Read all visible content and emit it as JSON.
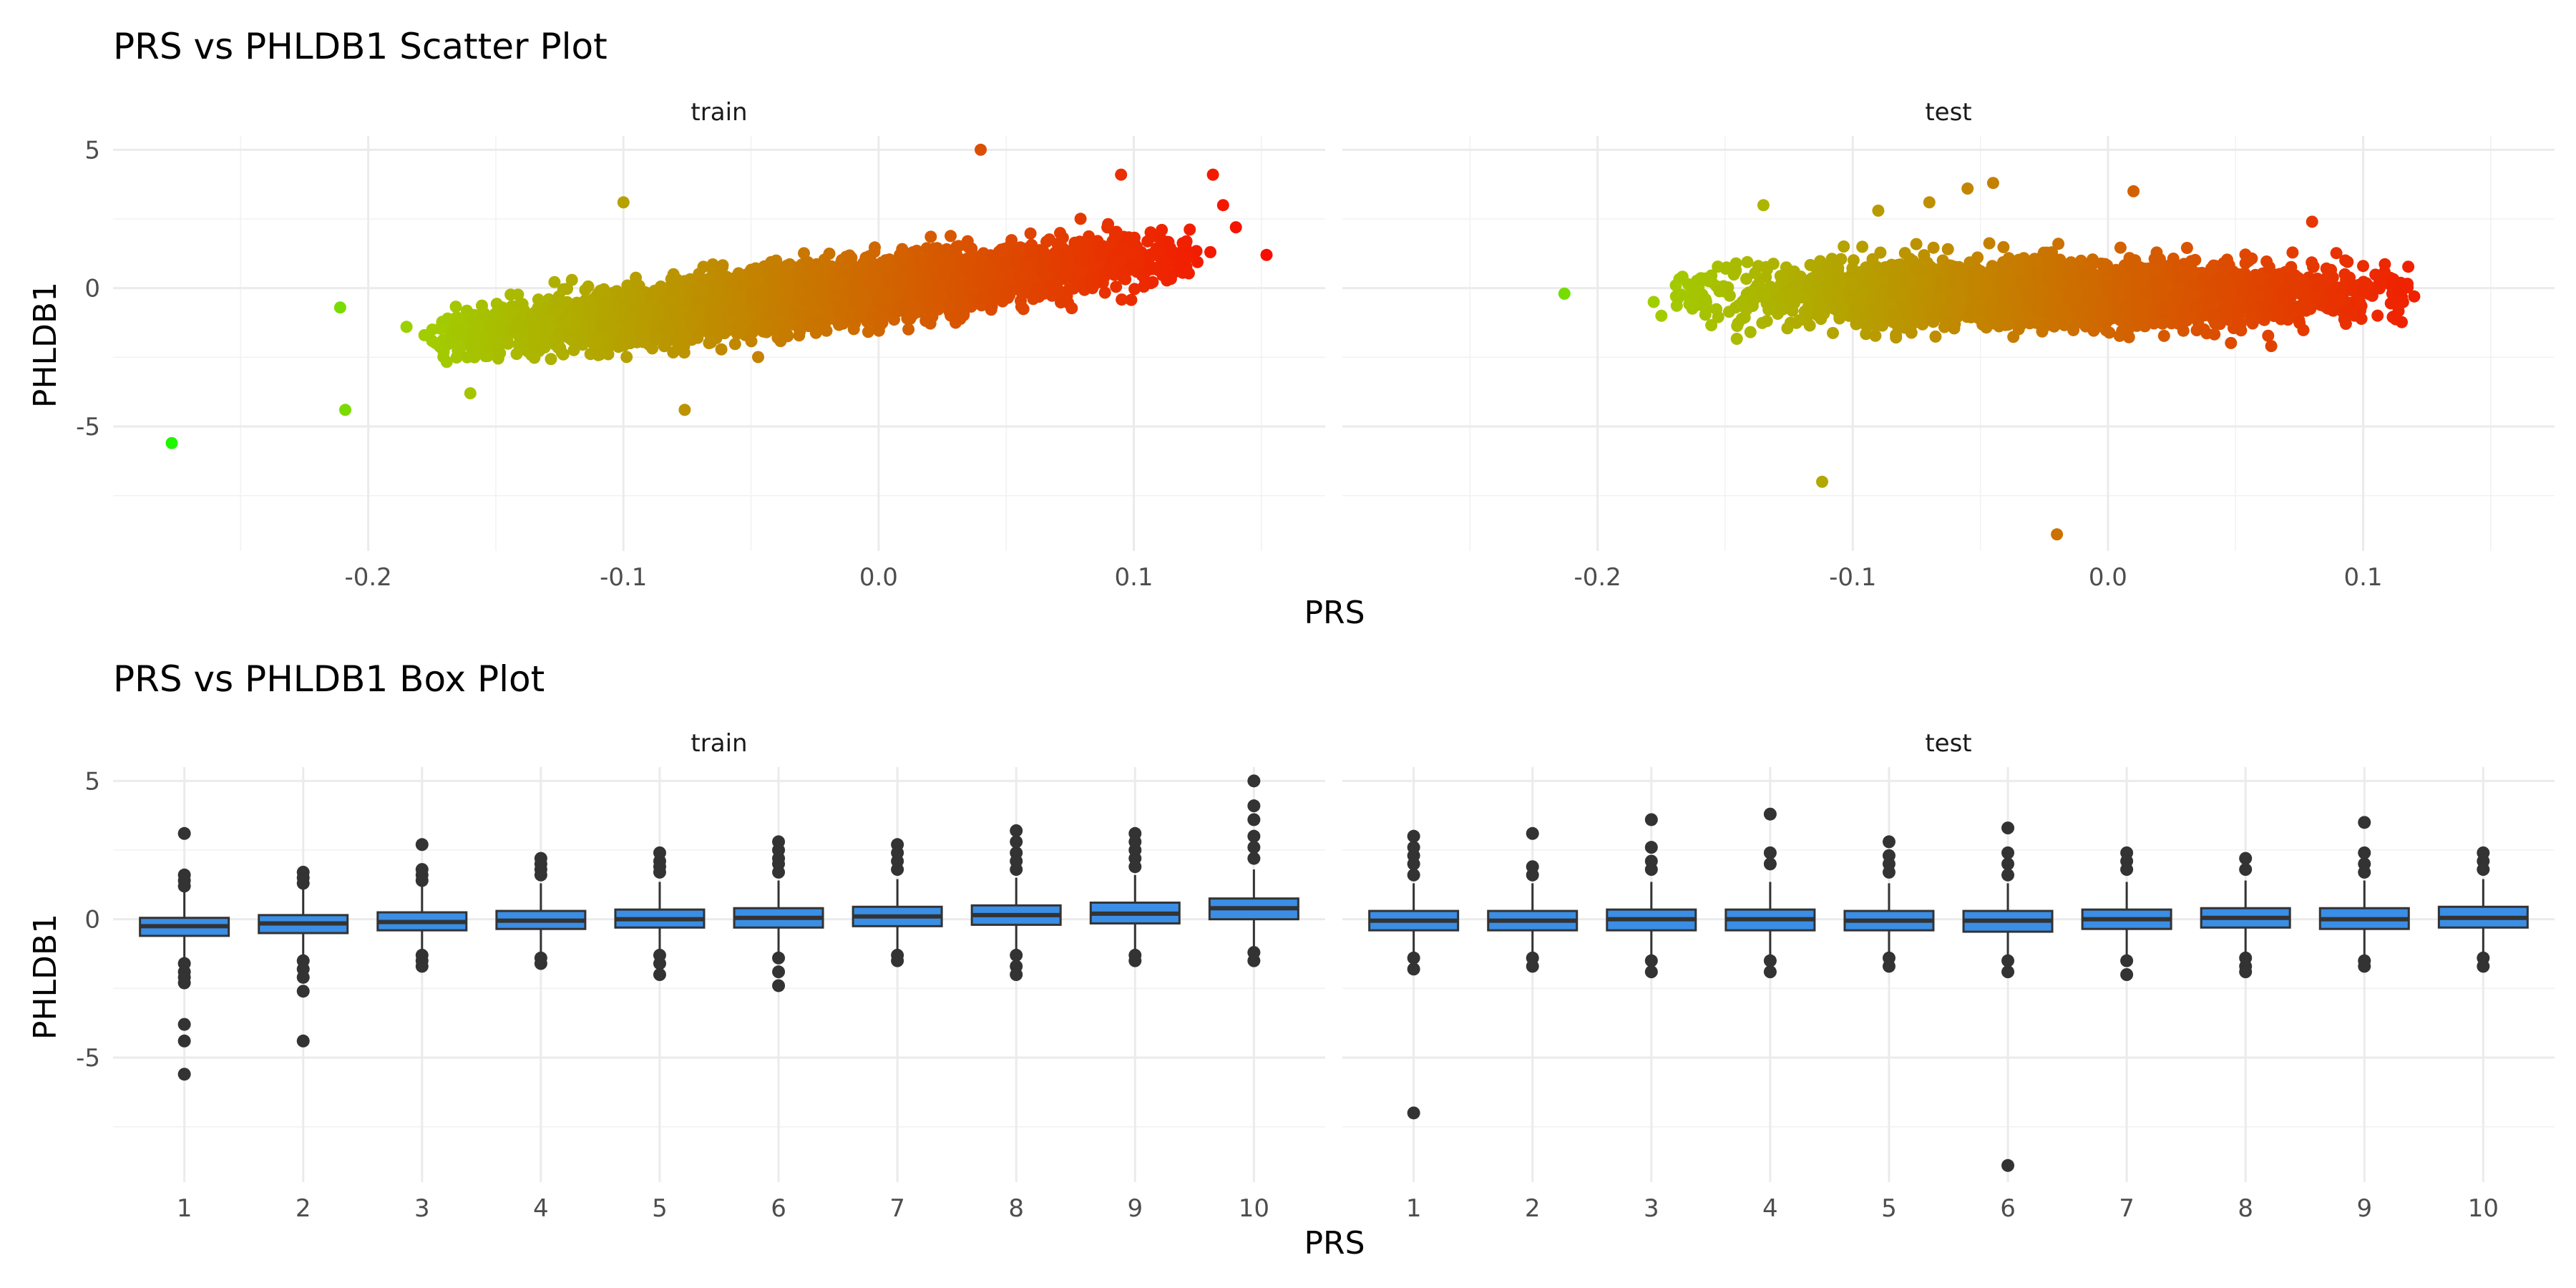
{
  "chart_data": [
    {
      "type": "scatter",
      "title": "PRS vs PHLDB1 Scatter Plot",
      "xlabel": "PRS",
      "ylabel": "PHLDB1",
      "facets": [
        "train",
        "test"
      ],
      "xlim": [
        -0.3,
        0.175
      ],
      "ylim": [
        -9.5,
        5.5
      ],
      "x_ticks": [
        -0.2,
        -0.1,
        0.0,
        0.1
      ],
      "x_tick_labels": [
        "-0.2",
        "-0.1",
        "0.0",
        "0.1"
      ],
      "y_ticks": [
        -5,
        0,
        5
      ],
      "y_tick_labels": [
        "-5",
        "0",
        "5"
      ],
      "color_low": "#00ff00",
      "color_mid": "#a0d000",
      "color_high": "#ff0000",
      "grid": true,
      "legend": "none",
      "series": [
        {
          "facet": "train",
          "cloud": {
            "x_min": -0.175,
            "x_max": 0.125,
            "center": [
              0.0,
              0.0
            ],
            "slope": 10,
            "spread": 0.5,
            "n": 5000
          },
          "points": [
            {
              "x": -0.277,
              "y": -5.6
            },
            {
              "x": -0.211,
              "y": -0.7
            },
            {
              "x": -0.209,
              "y": -4.4
            },
            {
              "x": -0.185,
              "y": -1.4
            },
            {
              "x": -0.178,
              "y": -1.7
            },
            {
              "x": -0.16,
              "y": -3.8
            },
            {
              "x": -0.1,
              "y": 3.1
            },
            {
              "x": -0.076,
              "y": -4.4
            },
            {
              "x": 0.04,
              "y": 5.0
            },
            {
              "x": 0.095,
              "y": 4.1
            },
            {
              "x": 0.131,
              "y": 4.1
            },
            {
              "x": 0.135,
              "y": 3.0
            },
            {
              "x": 0.14,
              "y": 2.2
            },
            {
              "x": 0.152,
              "y": 1.2
            },
            {
              "x": 0.13,
              "y": 1.3
            }
          ]
        },
        {
          "facet": "test",
          "cloud": {
            "x_min": -0.17,
            "x_max": 0.12,
            "center": [
              -0.03,
              -0.2
            ],
            "slope": 0,
            "spread": 0.55,
            "n": 3000
          },
          "points": [
            {
              "x": -0.213,
              "y": -0.2
            },
            {
              "x": -0.178,
              "y": -0.5
            },
            {
              "x": -0.175,
              "y": -1.0
            },
            {
              "x": -0.135,
              "y": 3.0
            },
            {
              "x": -0.112,
              "y": -7.0
            },
            {
              "x": -0.02,
              "y": -8.9
            },
            {
              "x": -0.09,
              "y": 2.8
            },
            {
              "x": -0.07,
              "y": 3.1
            },
            {
              "x": -0.055,
              "y": 3.6
            },
            {
              "x": -0.045,
              "y": 3.8
            },
            {
              "x": 0.01,
              "y": 3.5
            },
            {
              "x": 0.08,
              "y": 2.4
            },
            {
              "x": 0.12,
              "y": -0.3
            },
            {
              "x": 0.1,
              "y": 0.8
            }
          ]
        }
      ]
    },
    {
      "type": "box",
      "title": "PRS vs PHLDB1 Box Plot",
      "xlabel": "PRS",
      "ylabel": "PHLDB1",
      "facets": [
        "train",
        "test"
      ],
      "categories": [
        "1",
        "2",
        "3",
        "4",
        "5",
        "6",
        "7",
        "8",
        "9",
        "10"
      ],
      "ylim": [
        -9.5,
        5.5
      ],
      "y_ticks": [
        -5,
        0,
        5
      ],
      "y_tick_labels": [
        "-5",
        "0",
        "5"
      ],
      "box_fill": "#3a8ee6",
      "grid": true,
      "series": [
        {
          "facet": "train",
          "boxes": [
            {
              "cat": "1",
              "q1": -0.6,
              "median": -0.25,
              "q3": 0.05,
              "wlow": -1.5,
              "whigh": 1.0,
              "outliers": [
                3.1,
                1.6,
                1.4,
                1.2,
                -1.6,
                -1.9,
                -2.1,
                -2.3,
                -3.8,
                -4.4,
                -5.6
              ]
            },
            {
              "cat": "2",
              "q1": -0.5,
              "median": -0.15,
              "q3": 0.15,
              "wlow": -1.4,
              "whigh": 1.1,
              "outliers": [
                1.7,
                1.5,
                1.3,
                -1.5,
                -1.8,
                -2.1,
                -2.6,
                -4.4
              ]
            },
            {
              "cat": "3",
              "q1": -0.4,
              "median": -0.1,
              "q3": 0.25,
              "wlow": -1.3,
              "whigh": 1.2,
              "outliers": [
                2.7,
                1.8,
                1.6,
                1.4,
                -1.3,
                -1.5,
                -1.7
              ]
            },
            {
              "cat": "4",
              "q1": -0.35,
              "median": -0.05,
              "q3": 0.3,
              "wlow": -1.3,
              "whigh": 1.3,
              "outliers": [
                2.2,
                2.0,
                1.8,
                1.6,
                -1.4,
                -1.6
              ]
            },
            {
              "cat": "5",
              "q1": -0.3,
              "median": 0.0,
              "q3": 0.35,
              "wlow": -1.25,
              "whigh": 1.35,
              "outliers": [
                2.4,
                2.1,
                1.9,
                1.7,
                -1.3,
                -1.6,
                -2.0
              ]
            },
            {
              "cat": "6",
              "q1": -0.3,
              "median": 0.05,
              "q3": 0.4,
              "wlow": -1.3,
              "whigh": 1.4,
              "outliers": [
                2.8,
                2.5,
                2.2,
                2.0,
                1.7,
                -1.4,
                -1.9,
                -2.4
              ]
            },
            {
              "cat": "7",
              "q1": -0.25,
              "median": 0.1,
              "q3": 0.45,
              "wlow": -1.2,
              "whigh": 1.45,
              "outliers": [
                2.7,
                2.4,
                2.1,
                1.8,
                -1.3,
                -1.5
              ]
            },
            {
              "cat": "8",
              "q1": -0.2,
              "median": 0.15,
              "q3": 0.5,
              "wlow": -1.1,
              "whigh": 1.5,
              "outliers": [
                3.2,
                2.8,
                2.4,
                2.1,
                1.8,
                -1.3,
                -1.7,
                -2.0
              ]
            },
            {
              "cat": "9",
              "q1": -0.15,
              "median": 0.2,
              "q3": 0.6,
              "wlow": -1.1,
              "whigh": 1.6,
              "outliers": [
                3.1,
                2.8,
                2.5,
                2.2,
                1.9,
                -1.3,
                -1.5
              ]
            },
            {
              "cat": "10",
              "q1": 0.0,
              "median": 0.4,
              "q3": 0.75,
              "wlow": -1.0,
              "whigh": 1.8,
              "outliers": [
                5.0,
                4.1,
                3.6,
                3.0,
                2.6,
                2.2,
                -1.2,
                -1.5
              ]
            }
          ]
        },
        {
          "facet": "test",
          "boxes": [
            {
              "cat": "1",
              "q1": -0.4,
              "median": -0.05,
              "q3": 0.3,
              "wlow": -1.3,
              "whigh": 1.3,
              "outliers": [
                3.0,
                2.6,
                2.3,
                2.0,
                1.6,
                -1.4,
                -1.8,
                -7.0
              ]
            },
            {
              "cat": "2",
              "q1": -0.4,
              "median": -0.05,
              "q3": 0.3,
              "wlow": -1.3,
              "whigh": 1.3,
              "outliers": [
                3.1,
                1.9,
                1.6,
                -1.4,
                -1.7
              ]
            },
            {
              "cat": "3",
              "q1": -0.4,
              "median": 0.0,
              "q3": 0.35,
              "wlow": -1.35,
              "whigh": 1.35,
              "outliers": [
                3.6,
                2.6,
                2.1,
                1.8,
                -1.5,
                -1.9
              ]
            },
            {
              "cat": "4",
              "q1": -0.4,
              "median": 0.0,
              "q3": 0.35,
              "wlow": -1.35,
              "whigh": 1.35,
              "outliers": [
                3.8,
                2.4,
                2.0,
                -1.5,
                -1.9
              ]
            },
            {
              "cat": "5",
              "q1": -0.4,
              "median": -0.05,
              "q3": 0.3,
              "wlow": -1.3,
              "whigh": 1.3,
              "outliers": [
                2.8,
                2.3,
                2.0,
                1.7,
                -1.4,
                -1.7
              ]
            },
            {
              "cat": "6",
              "q1": -0.45,
              "median": -0.05,
              "q3": 0.3,
              "wlow": -1.4,
              "whigh": 1.3,
              "outliers": [
                3.3,
                2.4,
                2.0,
                1.6,
                -1.5,
                -1.9,
                -8.9
              ]
            },
            {
              "cat": "7",
              "q1": -0.35,
              "median": 0.0,
              "q3": 0.35,
              "wlow": -1.3,
              "whigh": 1.35,
              "outliers": [
                2.4,
                2.1,
                1.8,
                -1.5,
                -2.0
              ]
            },
            {
              "cat": "8",
              "q1": -0.3,
              "median": 0.05,
              "q3": 0.4,
              "wlow": -1.25,
              "whigh": 1.4,
              "outliers": [
                2.2,
                1.8,
                -1.4,
                -1.7,
                -1.9
              ]
            },
            {
              "cat": "9",
              "q1": -0.35,
              "median": 0.0,
              "q3": 0.4,
              "wlow": -1.3,
              "whigh": 1.4,
              "outliers": [
                3.5,
                2.4,
                2.0,
                1.7,
                -1.5,
                -1.7
              ]
            },
            {
              "cat": "10",
              "q1": -0.3,
              "median": 0.05,
              "q3": 0.45,
              "wlow": -1.2,
              "whigh": 1.45,
              "outliers": [
                2.4,
                2.1,
                1.8,
                -1.4,
                -1.7
              ]
            }
          ]
        }
      ]
    }
  ]
}
